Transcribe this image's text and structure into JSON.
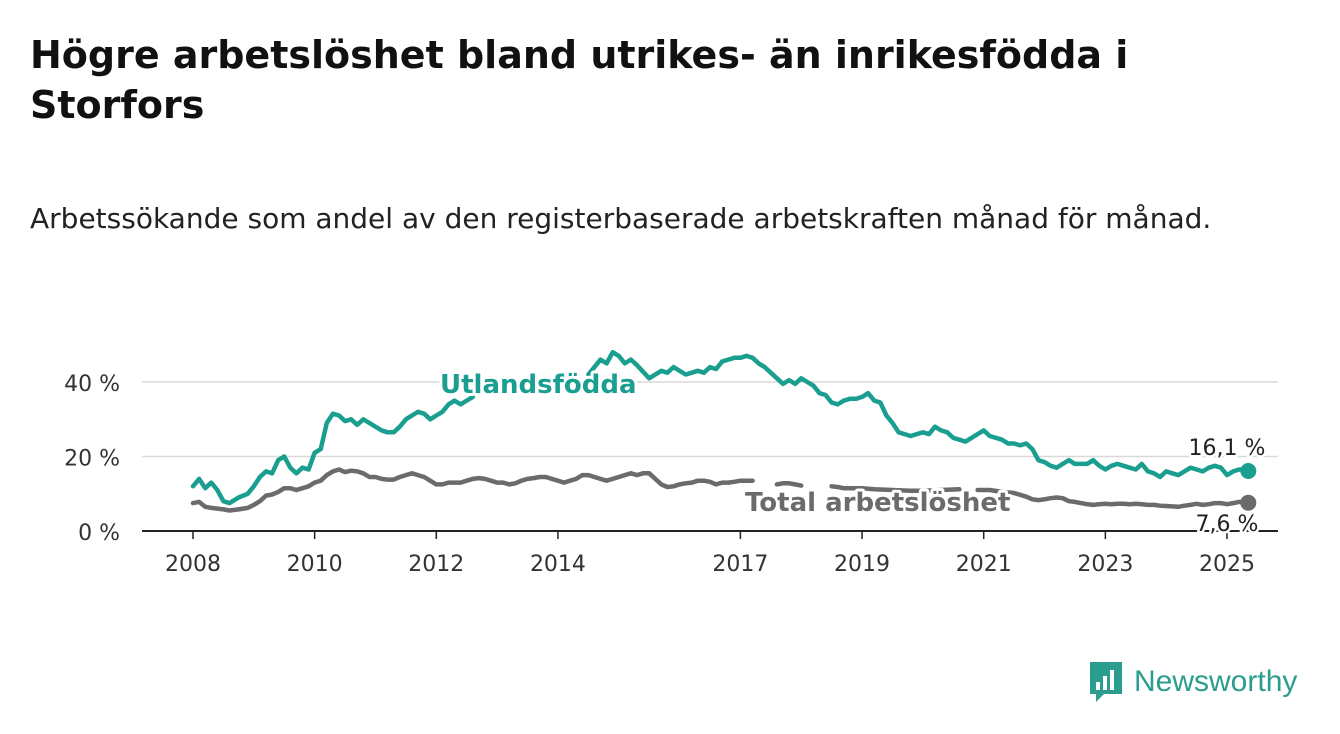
{
  "header": {
    "title": "Högre arbetslöshet bland utrikes- än inrikesfödda i Storfors",
    "subtitle": "Arbetssökande som andel av den registerbaserade arbetskraften månad för månad."
  },
  "brand": {
    "name": "Newsworthy",
    "icon": "newsworthy-logo-icon",
    "color": "#2a9d8f"
  },
  "chart_data": {
    "type": "line",
    "xlim": [
      2008.0,
      2025.0
    ],
    "ylim": [
      0,
      40
    ],
    "x_ticks": [
      2008,
      2010,
      2012,
      2014,
      2017,
      2019,
      2021,
      2023,
      2025
    ],
    "x_tick_labels": [
      "2008",
      "2010",
      "2012",
      "2014",
      "2017",
      "2019",
      "2021",
      "2023",
      "2025"
    ],
    "y_ticks": [
      0,
      20,
      40
    ],
    "y_tick_labels": [
      "0 %",
      "20 %",
      "40 %"
    ],
    "grid": true,
    "series": [
      {
        "name": "Utlandsfödda",
        "color": "#1a9e8f",
        "end_label": "16,1 %",
        "points": [
          [
            2008.0,
            12
          ],
          [
            2008.1,
            14
          ],
          [
            2008.2,
            11.5
          ],
          [
            2008.3,
            13
          ],
          [
            2008.4,
            11
          ],
          [
            2008.5,
            8
          ],
          [
            2008.6,
            7.5
          ],
          [
            2008.75,
            9
          ],
          [
            2008.9,
            10
          ],
          [
            2009.0,
            12
          ],
          [
            2009.1,
            14.5
          ],
          [
            2009.2,
            16
          ],
          [
            2009.3,
            15.5
          ],
          [
            2009.4,
            19
          ],
          [
            2009.5,
            20
          ],
          [
            2009.6,
            17
          ],
          [
            2009.7,
            15.5
          ],
          [
            2009.8,
            17
          ],
          [
            2009.9,
            16.5
          ],
          [
            2010.0,
            21
          ],
          [
            2010.1,
            22
          ],
          [
            2010.2,
            29
          ],
          [
            2010.3,
            31.5
          ],
          [
            2010.4,
            31
          ],
          [
            2010.5,
            29.5
          ],
          [
            2010.6,
            30
          ],
          [
            2010.7,
            28.5
          ],
          [
            2010.8,
            30
          ],
          [
            2010.9,
            29
          ],
          [
            2011.0,
            28
          ],
          [
            2011.1,
            27
          ],
          [
            2011.2,
            26.5
          ],
          [
            2011.3,
            26.5
          ],
          [
            2011.4,
            28
          ],
          [
            2011.5,
            30
          ],
          [
            2011.6,
            31
          ],
          [
            2011.7,
            32
          ],
          [
            2011.8,
            31.5
          ],
          [
            2011.9,
            30
          ],
          [
            2012.0,
            31
          ],
          [
            2012.1,
            32
          ],
          [
            2012.2,
            34
          ],
          [
            2012.3,
            35
          ],
          [
            2012.4,
            34
          ],
          [
            2012.5,
            35
          ],
          [
            2012.6,
            36
          ],
          [
            2014.5,
            42
          ],
          [
            2014.6,
            44
          ],
          [
            2014.7,
            46
          ],
          [
            2014.8,
            45
          ],
          [
            2014.9,
            48
          ],
          [
            2015.0,
            47
          ],
          [
            2015.1,
            45
          ],
          [
            2015.2,
            46
          ],
          [
            2015.3,
            44.5
          ],
          [
            2015.5,
            41
          ],
          [
            2015.6,
            42
          ],
          [
            2015.7,
            43
          ],
          [
            2015.8,
            42.5
          ],
          [
            2015.9,
            44
          ],
          [
            2016.0,
            43
          ],
          [
            2016.1,
            42
          ],
          [
            2016.2,
            42.5
          ],
          [
            2016.3,
            43
          ],
          [
            2016.4,
            42.5
          ],
          [
            2016.5,
            44
          ],
          [
            2016.6,
            43.5
          ],
          [
            2016.7,
            45.5
          ],
          [
            2016.8,
            46
          ],
          [
            2016.9,
            46.5
          ],
          [
            2017.0,
            46.5
          ],
          [
            2017.1,
            47
          ],
          [
            2017.2,
            46.5
          ],
          [
            2017.3,
            45
          ],
          [
            2017.4,
            44
          ],
          [
            2017.5,
            42.5
          ],
          [
            2017.6,
            41
          ],
          [
            2017.7,
            39.5
          ],
          [
            2017.8,
            40.5
          ],
          [
            2017.9,
            39.5
          ],
          [
            2018.0,
            41
          ],
          [
            2018.1,
            40
          ],
          [
            2018.2,
            39
          ],
          [
            2018.3,
            37
          ],
          [
            2018.4,
            36.5
          ],
          [
            2018.5,
            34.5
          ],
          [
            2018.6,
            34
          ],
          [
            2018.7,
            35
          ],
          [
            2018.8,
            35.5
          ],
          [
            2018.9,
            35.5
          ],
          [
            2019.0,
            36
          ],
          [
            2019.1,
            37
          ],
          [
            2019.2,
            35
          ],
          [
            2019.3,
            34.5
          ],
          [
            2019.4,
            31
          ],
          [
            2019.5,
            29
          ],
          [
            2019.6,
            26.5
          ],
          [
            2019.7,
            26
          ],
          [
            2019.8,
            25.5
          ],
          [
            2019.9,
            26
          ],
          [
            2020.0,
            26.5
          ],
          [
            2020.1,
            26
          ],
          [
            2020.2,
            28
          ],
          [
            2020.3,
            27
          ],
          [
            2020.4,
            26.5
          ],
          [
            2020.5,
            25
          ],
          [
            2020.6,
            24.5
          ],
          [
            2020.7,
            24
          ],
          [
            2020.8,
            25
          ],
          [
            2020.9,
            26
          ],
          [
            2021.0,
            27
          ],
          [
            2021.1,
            25.5
          ],
          [
            2021.2,
            25
          ],
          [
            2021.3,
            24.5
          ],
          [
            2021.4,
            23.5
          ],
          [
            2021.5,
            23.5
          ],
          [
            2021.6,
            23
          ],
          [
            2021.7,
            23.5
          ],
          [
            2021.8,
            22
          ],
          [
            2021.9,
            19
          ],
          [
            2022.0,
            18.5
          ],
          [
            2022.1,
            17.5
          ],
          [
            2022.2,
            17
          ],
          [
            2022.3,
            18
          ],
          [
            2022.4,
            19
          ],
          [
            2022.5,
            18
          ],
          [
            2022.6,
            18
          ],
          [
            2022.7,
            18
          ],
          [
            2022.8,
            19
          ],
          [
            2022.9,
            17.5
          ],
          [
            2023.0,
            16.5
          ],
          [
            2023.1,
            17.5
          ],
          [
            2023.2,
            18
          ],
          [
            2023.3,
            17.5
          ],
          [
            2023.4,
            17
          ],
          [
            2023.5,
            16.5
          ],
          [
            2023.6,
            18
          ],
          [
            2023.7,
            16
          ],
          [
            2023.8,
            15.5
          ],
          [
            2023.9,
            14.5
          ],
          [
            2024.0,
            16
          ],
          [
            2024.1,
            15.5
          ],
          [
            2024.2,
            15
          ],
          [
            2024.3,
            16
          ],
          [
            2024.4,
            17
          ],
          [
            2024.5,
            16.5
          ],
          [
            2024.6,
            16
          ],
          [
            2024.7,
            17
          ],
          [
            2024.8,
            17.5
          ],
          [
            2024.9,
            17
          ],
          [
            2025.0,
            15
          ],
          [
            2025.1,
            16
          ],
          [
            2025.2,
            16.5
          ],
          [
            2025.3,
            16.5
          ],
          [
            2025.35,
            16.1
          ]
        ]
      },
      {
        "name": "Total arbetslöshet",
        "color": "#6b6b6e",
        "end_label": "7,6 %",
        "points": [
          [
            2008.0,
            7.5
          ],
          [
            2008.1,
            7.8
          ],
          [
            2008.2,
            6.5
          ],
          [
            2008.3,
            6.2
          ],
          [
            2008.4,
            6
          ],
          [
            2008.5,
            5.8
          ],
          [
            2008.6,
            5.5
          ],
          [
            2008.75,
            5.8
          ],
          [
            2008.9,
            6.2
          ],
          [
            2009.0,
            7
          ],
          [
            2009.1,
            8
          ],
          [
            2009.2,
            9.5
          ],
          [
            2009.3,
            9.8
          ],
          [
            2009.4,
            10.5
          ],
          [
            2009.5,
            11.5
          ],
          [
            2009.6,
            11.5
          ],
          [
            2009.7,
            11
          ],
          [
            2009.8,
            11.5
          ],
          [
            2009.9,
            12
          ],
          [
            2010.0,
            13
          ],
          [
            2010.1,
            13.5
          ],
          [
            2010.2,
            15
          ],
          [
            2010.3,
            16
          ],
          [
            2010.4,
            16.5
          ],
          [
            2010.5,
            15.8
          ],
          [
            2010.6,
            16.2
          ],
          [
            2010.7,
            16
          ],
          [
            2010.8,
            15.5
          ],
          [
            2010.9,
            14.5
          ],
          [
            2011.0,
            14.5
          ],
          [
            2011.1,
            14
          ],
          [
            2011.2,
            13.8
          ],
          [
            2011.3,
            13.8
          ],
          [
            2011.4,
            14.5
          ],
          [
            2011.5,
            15
          ],
          [
            2011.6,
            15.5
          ],
          [
            2011.7,
            15
          ],
          [
            2011.8,
            14.5
          ],
          [
            2011.9,
            13.5
          ],
          [
            2012.0,
            12.5
          ],
          [
            2012.1,
            12.5
          ],
          [
            2012.2,
            13
          ],
          [
            2012.3,
            13
          ],
          [
            2012.4,
            13
          ],
          [
            2012.5,
            13.5
          ],
          [
            2012.6,
            14
          ],
          [
            2012.7,
            14.2
          ],
          [
            2012.8,
            14
          ],
          [
            2012.9,
            13.5
          ],
          [
            2013.0,
            13
          ],
          [
            2013.1,
            13
          ],
          [
            2013.2,
            12.5
          ],
          [
            2013.3,
            12.8
          ],
          [
            2013.4,
            13.5
          ],
          [
            2013.5,
            14
          ],
          [
            2013.6,
            14.2
          ],
          [
            2013.7,
            14.5
          ],
          [
            2013.8,
            14.5
          ],
          [
            2013.9,
            14
          ],
          [
            2014.0,
            13.5
          ],
          [
            2014.1,
            13
          ],
          [
            2014.2,
            13.5
          ],
          [
            2014.3,
            14
          ],
          [
            2014.4,
            15
          ],
          [
            2014.5,
            15
          ],
          [
            2014.6,
            14.5
          ],
          [
            2014.7,
            14
          ],
          [
            2014.8,
            13.5
          ],
          [
            2014.9,
            14
          ],
          [
            2015.0,
            14.5
          ],
          [
            2015.1,
            15
          ],
          [
            2015.2,
            15.5
          ],
          [
            2015.3,
            15
          ],
          [
            2015.4,
            15.5
          ],
          [
            2015.5,
            15.5
          ],
          [
            2015.6,
            14
          ],
          [
            2015.7,
            12.5
          ],
          [
            2015.8,
            11.8
          ],
          [
            2015.9,
            12
          ],
          [
            2016.0,
            12.5
          ],
          [
            2016.1,
            12.8
          ],
          [
            2016.2,
            13
          ],
          [
            2016.3,
            13.5
          ],
          [
            2016.4,
            13.5
          ],
          [
            2016.5,
            13.2
          ],
          [
            2016.6,
            12.5
          ],
          [
            2016.7,
            13
          ],
          [
            2016.8,
            13
          ],
          [
            2016.9,
            13.2
          ],
          [
            2017.0,
            13.5
          ],
          [
            2017.1,
            13.5
          ],
          [
            2017.2,
            13.5
          ],
          [
            2017.6,
            12.5
          ],
          [
            2017.7,
            12.8
          ],
          [
            2017.8,
            12.8
          ],
          [
            2017.9,
            12.5
          ],
          [
            2018.0,
            12.2
          ],
          [
            2018.5,
            12
          ],
          [
            2018.6,
            11.8
          ],
          [
            2018.7,
            11.5
          ],
          [
            2019.0,
            11.5
          ],
          [
            2019.2,
            11.2
          ],
          [
            2019.5,
            11
          ],
          [
            2019.8,
            10.8
          ],
          [
            2020.0,
            10.8
          ],
          [
            2020.3,
            11
          ],
          [
            2020.6,
            11.2
          ],
          [
            2020.9,
            11
          ],
          [
            2021.1,
            11
          ],
          [
            2021.3,
            10.5
          ],
          [
            2021.5,
            10.2
          ],
          [
            2021.7,
            9.2
          ],
          [
            2021.8,
            8.5
          ],
          [
            2021.9,
            8.3
          ],
          [
            2022.0,
            8.5
          ],
          [
            2022.1,
            8.8
          ],
          [
            2022.2,
            9
          ],
          [
            2022.3,
            8.8
          ],
          [
            2022.4,
            8
          ],
          [
            2022.5,
            7.8
          ],
          [
            2022.6,
            7.5
          ],
          [
            2022.7,
            7.2
          ],
          [
            2022.8,
            7
          ],
          [
            2022.9,
            7.2
          ],
          [
            2023.0,
            7.3
          ],
          [
            2023.1,
            7.2
          ],
          [
            2023.2,
            7.3
          ],
          [
            2023.3,
            7.3
          ],
          [
            2023.4,
            7.2
          ],
          [
            2023.5,
            7.3
          ],
          [
            2023.6,
            7.2
          ],
          [
            2023.7,
            7
          ],
          [
            2023.8,
            7
          ],
          [
            2023.9,
            6.8
          ],
          [
            2024.0,
            6.7
          ],
          [
            2024.1,
            6.6
          ],
          [
            2024.2,
            6.5
          ],
          [
            2024.3,
            6.8
          ],
          [
            2024.4,
            7
          ],
          [
            2024.5,
            7.3
          ],
          [
            2024.6,
            7
          ],
          [
            2024.7,
            7.2
          ],
          [
            2024.8,
            7.5
          ],
          [
            2024.9,
            7.5
          ],
          [
            2025.0,
            7.2
          ],
          [
            2025.1,
            7.5
          ],
          [
            2025.2,
            7.8
          ],
          [
            2025.3,
            7.7
          ],
          [
            2025.35,
            7.6
          ]
        ]
      }
    ]
  }
}
